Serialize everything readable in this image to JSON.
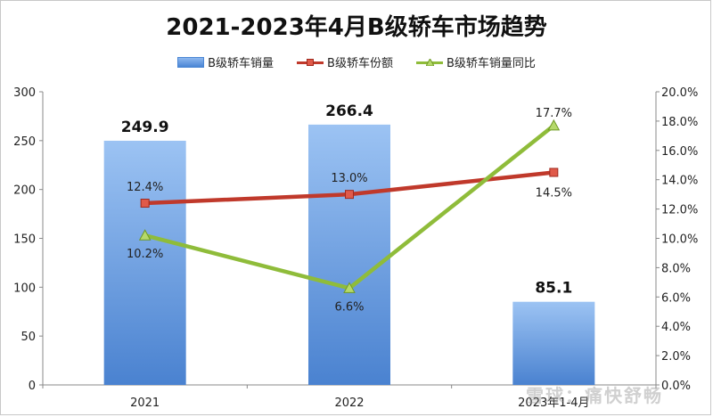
{
  "chart_data": {
    "type": "bar+line",
    "title": "2021-2023年4月B级轿车市场趋势",
    "categories": [
      "2021",
      "2022",
      "2023年1-4月"
    ],
    "series": [
      {
        "name": "B级轿车销量",
        "type": "bar",
        "axis": "left",
        "values": [
          249.9,
          266.4,
          85.1
        ],
        "labels": [
          "249.9",
          "266.4",
          "85.1"
        ],
        "color": "#4a86d4"
      },
      {
        "name": "B级轿车份额",
        "type": "line",
        "axis": "right",
        "values": [
          12.4,
          13.0,
          14.5
        ],
        "labels": [
          "12.4%",
          "13.0%",
          "14.5%"
        ],
        "color": "#c0392b",
        "marker": "square"
      },
      {
        "name": "B级轿车销量同比",
        "type": "line",
        "axis": "right",
        "values": [
          10.2,
          6.6,
          17.7
        ],
        "labels": [
          "10.2%",
          "6.6%",
          "17.7%"
        ],
        "color": "#8fbc3a",
        "marker": "triangle"
      }
    ],
    "y_left": {
      "min": 0,
      "max": 300,
      "ticks": [
        "0",
        "50",
        "100",
        "150",
        "200",
        "250",
        "300"
      ]
    },
    "y_right": {
      "min": 0,
      "max": 20,
      "ticks": [
        "0.0%",
        "2.0%",
        "4.0%",
        "6.0%",
        "8.0%",
        "10.0%",
        "12.0%",
        "14.0%",
        "16.0%",
        "18.0%",
        "20.0%"
      ]
    },
    "grid": false,
    "legend_position": "top"
  },
  "watermark": "雪球：痛快舒畅"
}
